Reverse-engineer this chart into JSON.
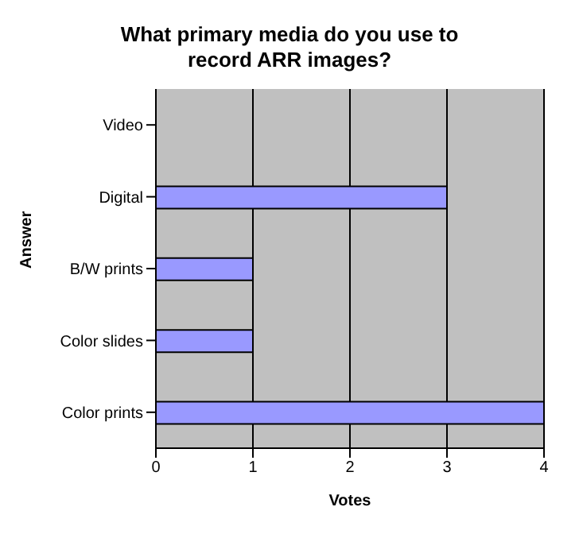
{
  "chart_data": {
    "type": "bar",
    "orientation": "horizontal",
    "title": "What primary media do you use to record ARR images?",
    "xlabel": "Votes",
    "ylabel": "Answer",
    "categories": [
      "Video",
      "Digital",
      "B/W prints",
      "Color slides",
      "Color prints"
    ],
    "values": [
      0,
      3,
      1,
      1,
      4
    ],
    "color": "#9999ff",
    "xlim": [
      0,
      4
    ],
    "xticks": [
      0,
      1,
      2,
      3,
      4
    ],
    "grid": "x",
    "legend": false
  }
}
